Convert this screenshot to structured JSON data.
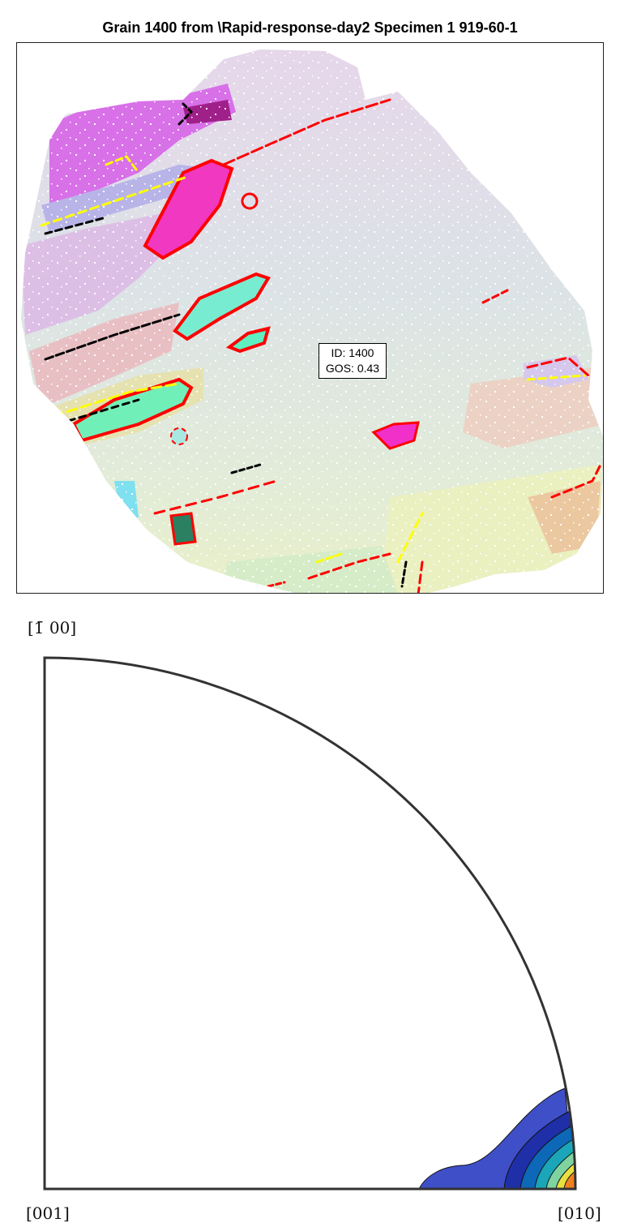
{
  "title": "Grain 1400 from \\Rapid-response-day2 Specimen 1 919-60-1",
  "annotation": {
    "id_line": "ID: 1400",
    "gos_line": "GOS: 0.43"
  },
  "pole_figure": {
    "top_label": "[̅0̅0]",
    "top_label_text": "[1̄ 00]",
    "bottom_left_label": "[001]",
    "bottom_right_label": "[010]"
  },
  "colors": {
    "background": "#ffffff",
    "high_angle_boundary": "#ff0000",
    "low_angle_boundary": "#ffff00",
    "other_boundary": "#000000",
    "contour_levels": [
      "#3f4fc8",
      "#1f2fa8",
      "#0d68b8",
      "#1aa6b8",
      "#7fd3a0",
      "#e8e040",
      "#f08020"
    ]
  }
}
